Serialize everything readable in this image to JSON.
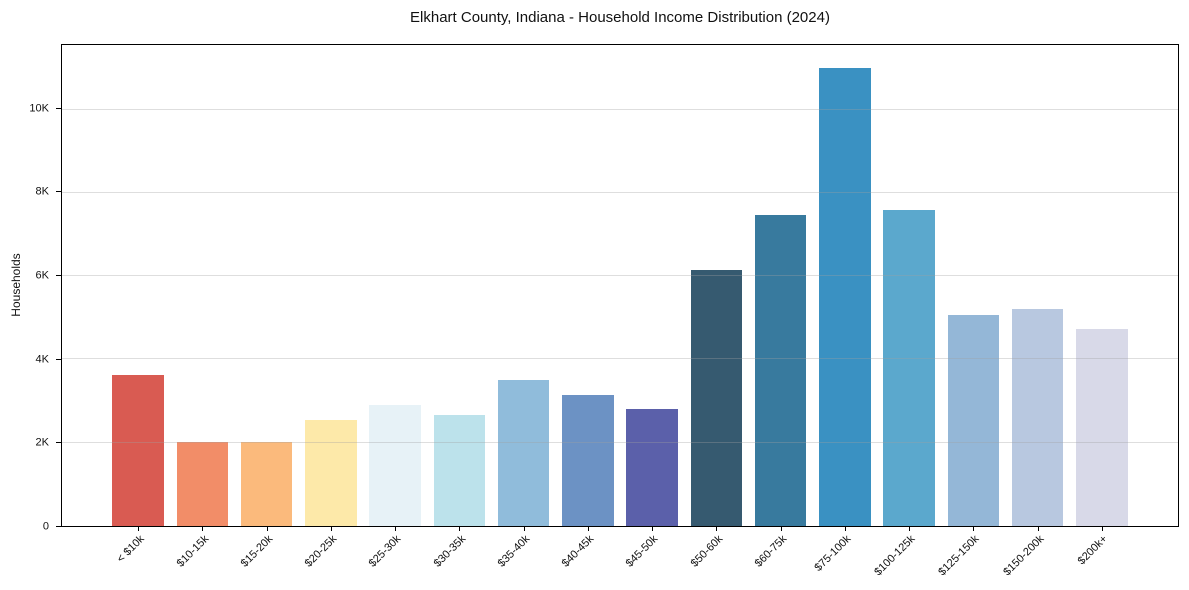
{
  "title": "Elkhart County, Indiana - Household Income Distribution (2024)",
  "chart_data": {
    "type": "bar",
    "title": "Elkhart County, Indiana - Household Income Distribution (2024)",
    "xlabel": "",
    "ylabel": "Households",
    "grid": true,
    "legend": false,
    "ylim": [
      0,
      11550
    ],
    "yticks": [
      {
        "value": 0,
        "label": "0"
      },
      {
        "value": 2000,
        "label": "2K"
      },
      {
        "value": 4000,
        "label": "4K"
      },
      {
        "value": 6000,
        "label": "6K"
      },
      {
        "value": 8000,
        "label": "8K"
      },
      {
        "value": 10000,
        "label": "10K"
      }
    ],
    "categories": [
      "< $10k",
      "$10-15k",
      "$15-20k",
      "$20-25k",
      "$25-30k",
      "$30-35k",
      "$35-40k",
      "$40-45k",
      "$45-50k",
      "$50-60k",
      "$60-75k",
      "$75-100k",
      "$100-125k",
      "$125-150k",
      "$150-200k",
      "$200k+"
    ],
    "values": [
      3630,
      2020,
      2025,
      2550,
      2900,
      2670,
      3500,
      3150,
      2800,
      6150,
      7470,
      11000,
      7580,
      5060,
      5220,
      4730
    ],
    "bar_colors": [
      "#d95b52",
      "#f28d68",
      "#fbba7c",
      "#fde9a9",
      "#e7f2f7",
      "#bce2eb",
      "#90bcdb",
      "#6c92c4",
      "#5b60aa",
      "#365a70",
      "#387a9e",
      "#3a91c2",
      "#5ba8cd",
      "#94b7d7",
      "#b8c8e0",
      "#d8d9e8"
    ],
    "colors": {
      "background": "#ffffff",
      "spine": "#000000",
      "text": "#111111",
      "gridline": "#e2e2e2"
    }
  }
}
